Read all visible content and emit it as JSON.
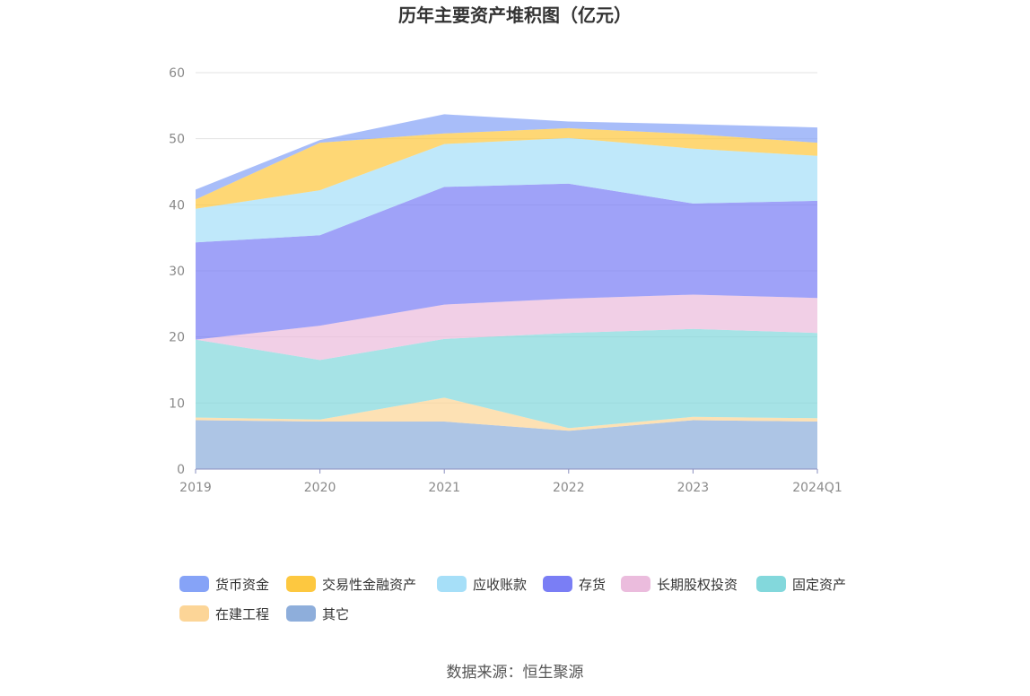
{
  "chart_data": {
    "type": "area",
    "stacked": true,
    "title": "历年主要资产堆积图（亿元）",
    "categories": [
      "2019",
      "2020",
      "2021",
      "2022",
      "2023",
      "2024Q1"
    ],
    "ylim": [
      0,
      60
    ],
    "yticks": [
      0,
      10,
      20,
      30,
      40,
      50,
      60
    ],
    "grid": true,
    "legend_position": "bottom",
    "series": [
      {
        "name": "其它",
        "color": "#8eaedb",
        "values": [
          7.4,
          7.2,
          7.2,
          5.8,
          7.4,
          7.2
        ]
      },
      {
        "name": "在建工程",
        "color": "#fcd597",
        "values": [
          0.4,
          0.3,
          3.6,
          0.4,
          0.5,
          0.5
        ]
      },
      {
        "name": "固定资产",
        "color": "#83d8dc",
        "values": [
          11.8,
          9.0,
          8.9,
          14.4,
          13.3,
          12.9
        ]
      },
      {
        "name": "长期股权投资",
        "color": "#ebbcdd",
        "values": [
          0.0,
          5.2,
          5.2,
          5.2,
          5.2,
          5.3
        ]
      },
      {
        "name": "存货",
        "color": "#7a7ef5",
        "values": [
          14.7,
          13.7,
          17.8,
          17.4,
          13.8,
          14.7
        ]
      },
      {
        "name": "应收账款",
        "color": "#a6dff8",
        "values": [
          5.1,
          6.8,
          6.5,
          6.9,
          8.3,
          6.8
        ]
      },
      {
        "name": "交易性金融资产",
        "color": "#fdc840",
        "values": [
          1.4,
          7.2,
          1.6,
          1.5,
          2.2,
          2.0
        ]
      },
      {
        "name": "货币资金",
        "color": "#86a3f7",
        "values": [
          1.5,
          0.4,
          2.9,
          1.0,
          1.5,
          2.3
        ]
      }
    ],
    "legend_order": [
      "货币资金",
      "交易性金融资产",
      "应收账款",
      "存货",
      "长期股权投资",
      "固定资产",
      "在建工程",
      "其它"
    ]
  },
  "source_text": "数据来源：恒生聚源"
}
